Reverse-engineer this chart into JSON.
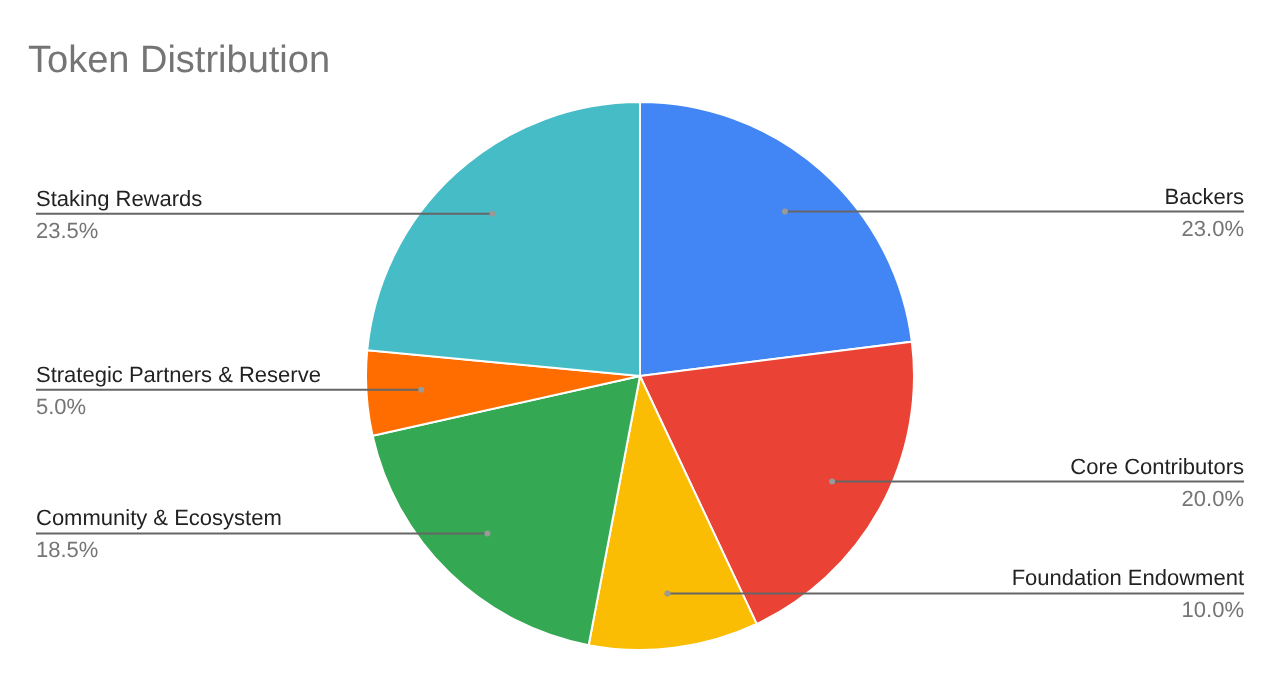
{
  "chart_data": {
    "type": "pie",
    "title": "Token Distribution",
    "categories": [
      "Backers",
      "Core Contributors",
      "Foundation Endowment",
      "Community & Ecosystem",
      "Strategic Partners & Reserve",
      "Staking Rewards"
    ],
    "values": [
      23.0,
      20.0,
      10.0,
      18.5,
      5.0,
      23.5
    ],
    "colors": [
      "#4285f4",
      "#ea4335",
      "#fbbc04",
      "#34a853",
      "#ff6d01",
      "#46bdc6"
    ],
    "value_labels": [
      "23.0%",
      "20.0%",
      "10.0%",
      "18.5%",
      "5.0%",
      "23.5%"
    ],
    "legend": false
  }
}
